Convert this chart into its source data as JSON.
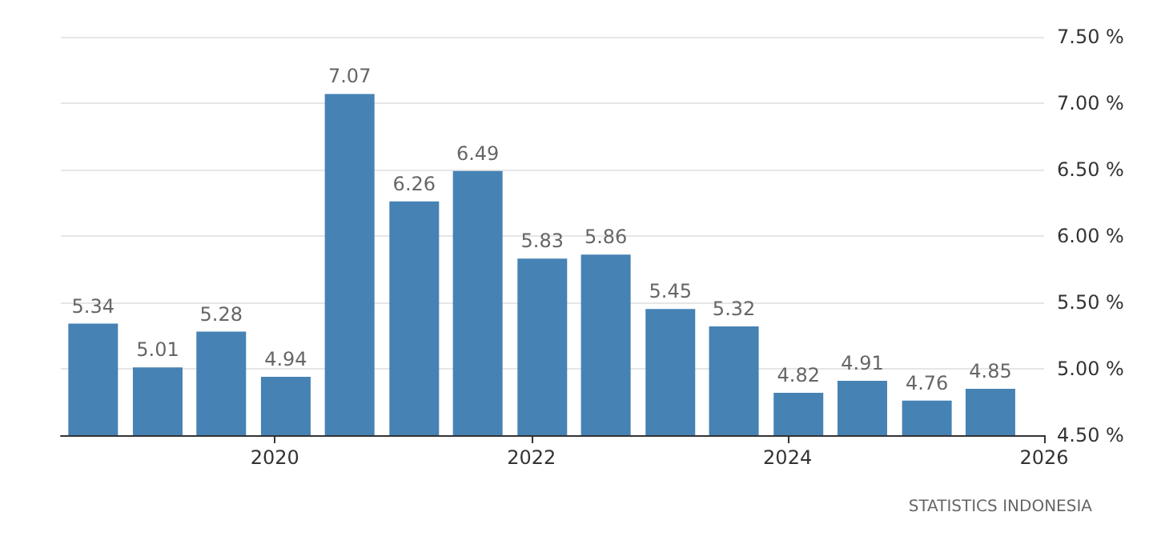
{
  "chart_data": {
    "type": "bar",
    "x": [
      "2018-08",
      "2019-02",
      "2019-08",
      "2020-02",
      "2020-08",
      "2021-02",
      "2021-08",
      "2022-02",
      "2022-08",
      "2023-02",
      "2023-08",
      "2024-02",
      "2024-08",
      "2025-02",
      "2025-08"
    ],
    "values": [
      5.34,
      5.01,
      5.28,
      4.94,
      7.07,
      6.26,
      6.49,
      5.83,
      5.86,
      5.45,
      5.32,
      4.82,
      4.91,
      4.76,
      4.85
    ],
    "color": "#4682b4",
    "data_labels": true,
    "xlim": [
      "2018-05",
      "2026-01"
    ],
    "xticks": [
      {
        "value": "2020",
        "label": "2020"
      },
      {
        "value": "2022",
        "label": "2022"
      },
      {
        "value": "2024",
        "label": "2024"
      },
      {
        "value": "2026",
        "label": "2026"
      }
    ],
    "ylim": [
      4.5,
      7.5
    ],
    "yticks": [
      {
        "value": 4.5,
        "label": "4.50 %"
      },
      {
        "value": 5,
        "label": "5.00 %"
      },
      {
        "value": 5.5,
        "label": "5.50 %"
      },
      {
        "value": 6,
        "label": "6.00 %"
      },
      {
        "value": 6.5,
        "label": "6.50 %"
      },
      {
        "value": 7,
        "label": "7.00 %"
      },
      {
        "value": 7.5,
        "label": "7.50 %"
      }
    ],
    "grid": "y",
    "annotations": [
      "STATISTICS INDONESIA"
    ]
  }
}
